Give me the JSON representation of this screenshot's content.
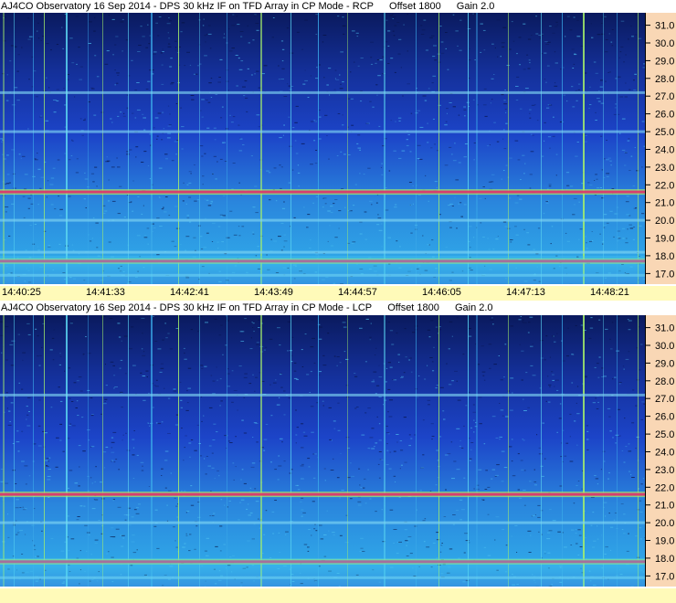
{
  "panels": [
    {
      "title": "AJ4CO Observatory 16 Sep 2014 - DPS 30 kHz IF on TFD Array in CP Mode - RCP",
      "offset_label": "Offset 1800",
      "gain_label": "Gain 2.0"
    },
    {
      "title": "AJ4CO Observatory 16 Sep 2014 - DPS 30 kHz IF on TFD Array in CP Mode - LCP",
      "offset_label": "Offset 1800",
      "gain_label": "Gain 2.0"
    }
  ],
  "chart_data": [
    {
      "type": "heatmap",
      "title": "AJ4CO Observatory 16 Sep 2014 - DPS 30 kHz IF on TFD Array in CP Mode - RCP",
      "x_tick_labels": [
        "14:40:25",
        "14:41:33",
        "14:42:41",
        "14:43:49",
        "14:44:57",
        "14:46:05",
        "14:47:13",
        "14:48:21"
      ],
      "y_tick_labels": [
        "31.0",
        "30.0",
        "29.0",
        "28.0",
        "27.0",
        "26.0",
        "25.0",
        "24.0",
        "23.0",
        "22.0",
        "21.0",
        "20.0",
        "19.0",
        "18.0",
        "17.0"
      ],
      "y_ticks": [
        31,
        30,
        29,
        28,
        27,
        26,
        25,
        24,
        23,
        22,
        21,
        20,
        19,
        18,
        17
      ],
      "ylim": [
        16.4,
        31.7
      ],
      "horizontal_bands": [
        {
          "freq": 27.2,
          "level": "medium"
        },
        {
          "freq": 25.0,
          "level": "medium"
        },
        {
          "freq": 21.6,
          "level": "strong"
        },
        {
          "freq": 20.0,
          "level": "medium"
        },
        {
          "freq": 18.2,
          "level": "medium"
        },
        {
          "freq": 17.7,
          "level": "strong"
        },
        {
          "freq": 16.9,
          "level": "medium"
        }
      ]
    },
    {
      "type": "heatmap",
      "title": "AJ4CO Observatory 16 Sep 2014 - DPS 30 kHz IF on TFD Array in CP Mode - LCP",
      "x_tick_labels": [],
      "y_tick_labels": [
        "31.0",
        "30.0",
        "29.0",
        "28.0",
        "27.0",
        "26.0",
        "25.0",
        "24.0",
        "23.0",
        "22.0",
        "21.0",
        "20.0",
        "19.0",
        "18.0",
        "17.0"
      ],
      "y_ticks": [
        31,
        30,
        29,
        28,
        27,
        26,
        25,
        24,
        23,
        22,
        21,
        20,
        19,
        18,
        17
      ],
      "ylim": [
        16.4,
        31.7
      ],
      "horizontal_bands": [
        {
          "freq": 27.2,
          "level": "medium"
        },
        {
          "freq": 21.6,
          "level": "strong"
        },
        {
          "freq": 20.0,
          "level": "medium"
        },
        {
          "freq": 17.8,
          "level": "strong"
        },
        {
          "freq": 16.9,
          "level": "medium"
        }
      ]
    }
  ],
  "colors": {
    "deep": "#0a1a5e",
    "mid": "#1c44c8",
    "bright": "#2fa7e8",
    "line_green": "#a6f06a",
    "line_red": "#e0306a",
    "axis_bg": "#f9d7b5",
    "time_bg": "#fffab9"
  }
}
